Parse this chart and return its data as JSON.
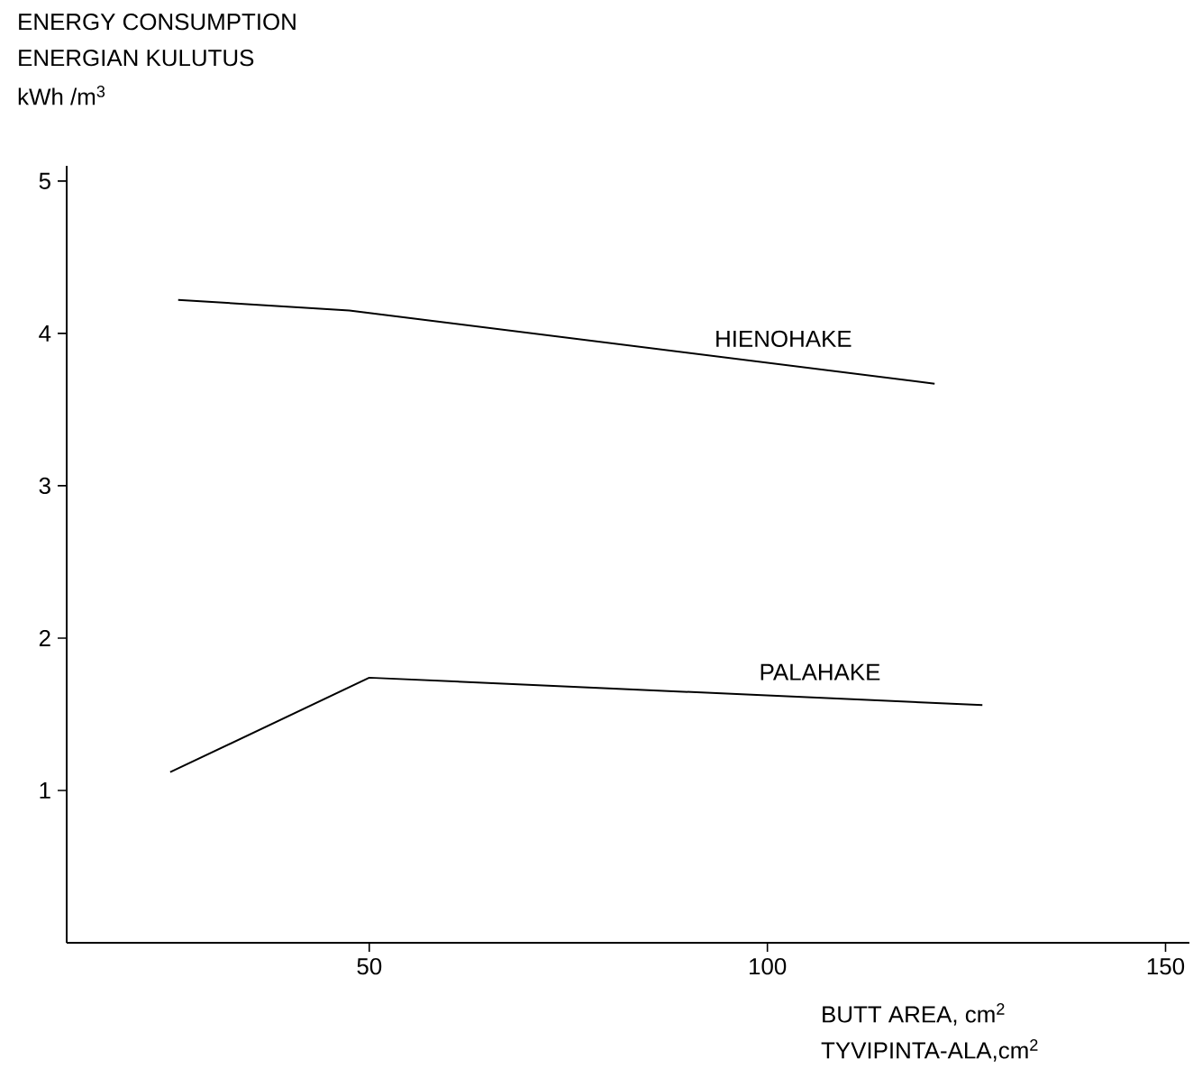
{
  "chart_data": {
    "type": "line",
    "title": "ENERGY CONSUMPTION",
    "subtitle": "ENERGIAN KULUTUS",
    "ylabel": "kWh /m$^{3}$",
    "xlabel": "BUTT AREA, cm$^{2}$",
    "annotations": [
      "TYVIPINTA-ALA,cm$^{2}$"
    ],
    "series": [
      {
        "name": "HIENOHAKE",
        "color": "#000000",
        "x": [
          26,
          47.5,
          121
        ],
        "values": [
          4.22,
          4.15,
          3.67
        ]
      },
      {
        "name": "PALAHAKE",
        "color": "#000000",
        "x": [
          25,
          50,
          127
        ],
        "values": [
          1.12,
          1.74,
          1.56
        ]
      }
    ],
    "xlim": [
      12,
      153
    ],
    "ylim": [
      0,
      5.1
    ],
    "xticks": [
      50,
      100,
      150
    ],
    "yticks": [
      1,
      2,
      3,
      4,
      5
    ],
    "grid": false,
    "marker": "none",
    "line_style": "solid"
  }
}
